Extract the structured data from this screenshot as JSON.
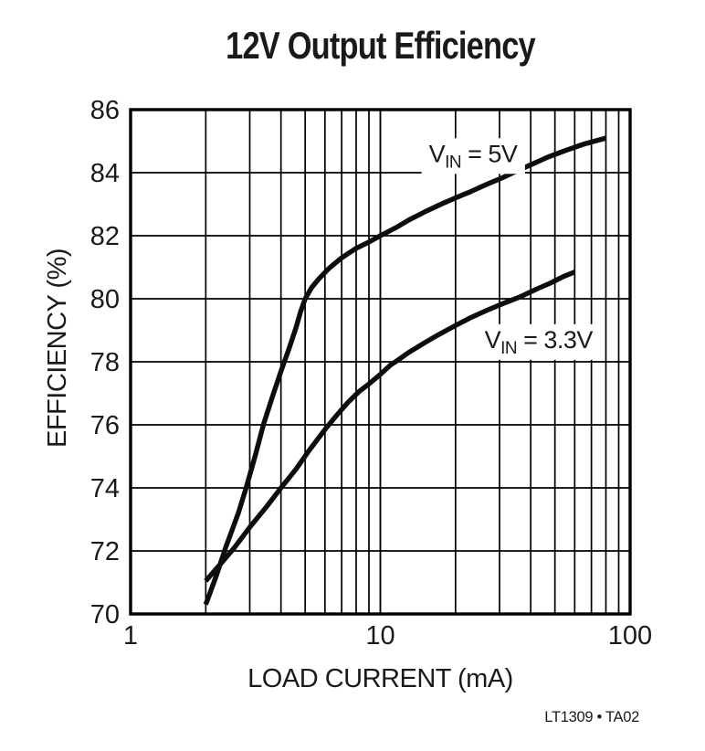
{
  "page": {
    "background": "#ffffff",
    "footnote": "LT1309 • TA02"
  },
  "chart_data": {
    "type": "line",
    "title": "12V Output Efficiency",
    "xlabel": "LOAD CURRENT (mA)",
    "ylabel": "EFFICIENCY (%)",
    "x_scale": "log",
    "xlim": [
      1,
      100
    ],
    "ylim": [
      70,
      86
    ],
    "grid": true,
    "grid_color": "#000000",
    "line_color": "#0d0d0d",
    "x_ticks": {
      "values": [
        1,
        10,
        100
      ],
      "labels": [
        "1",
        "10",
        "100"
      ]
    },
    "y_ticks": {
      "values": [
        70,
        72,
        74,
        76,
        78,
        80,
        82,
        84,
        86
      ],
      "labels": [
        "70",
        "72",
        "74",
        "76",
        "78",
        "80",
        "82",
        "84",
        "86"
      ]
    },
    "series": [
      {
        "name": "VIN = 5V",
        "label_parts": {
          "pre": "V",
          "sub": "IN",
          "post": " = 5V"
        },
        "label_anchor": {
          "x": 23.5,
          "y": 84.6
        },
        "points": [
          [
            2.0,
            70.3
          ],
          [
            2.2,
            71.2
          ],
          [
            2.4,
            72.1
          ],
          [
            2.7,
            73.2
          ],
          [
            2.9,
            74.0
          ],
          [
            3.15,
            75.0
          ],
          [
            3.4,
            76.0
          ],
          [
            3.7,
            76.9
          ],
          [
            4.0,
            77.7
          ],
          [
            4.3,
            78.4
          ],
          [
            4.6,
            79.1
          ],
          [
            4.8,
            79.6
          ],
          [
            5.0,
            80.0
          ],
          [
            5.3,
            80.35
          ],
          [
            5.7,
            80.65
          ],
          [
            6.2,
            80.95
          ],
          [
            7.0,
            81.3
          ],
          [
            8.0,
            81.6
          ],
          [
            9.0,
            81.8
          ],
          [
            10,
            82.0
          ],
          [
            11.5,
            82.25
          ],
          [
            13,
            82.5
          ],
          [
            15,
            82.75
          ],
          [
            17.5,
            83.0
          ],
          [
            20,
            83.2
          ],
          [
            23,
            83.4
          ],
          [
            27,
            83.65
          ],
          [
            31,
            83.85
          ],
          [
            34,
            84.0
          ],
          [
            40,
            84.25
          ],
          [
            47,
            84.5
          ],
          [
            55,
            84.7
          ],
          [
            65,
            84.9
          ],
          [
            80,
            85.1
          ]
        ]
      },
      {
        "name": "VIN = 3.3V",
        "label_parts": {
          "pre": "V",
          "sub": "IN",
          "post": " = 3.3V"
        },
        "label_anchor": {
          "x": 43,
          "y": 78.7
        },
        "points": [
          [
            2.0,
            71.05
          ],
          [
            2.3,
            71.6
          ],
          [
            2.6,
            72.1
          ],
          [
            3.0,
            72.75
          ],
          [
            3.5,
            73.4
          ],
          [
            4.0,
            74.0
          ],
          [
            4.6,
            74.6
          ],
          [
            5.2,
            75.2
          ],
          [
            6.0,
            75.85
          ],
          [
            6.6,
            76.25
          ],
          [
            7.4,
            76.7
          ],
          [
            8.2,
            77.05
          ],
          [
            9.0,
            77.3
          ],
          [
            10,
            77.6
          ],
          [
            11,
            77.9
          ],
          [
            11.5,
            78.0
          ],
          [
            13,
            78.3
          ],
          [
            15,
            78.6
          ],
          [
            17,
            78.85
          ],
          [
            20,
            79.15
          ],
          [
            23,
            79.4
          ],
          [
            27,
            79.65
          ],
          [
            31,
            79.85
          ],
          [
            36,
            80.05
          ],
          [
            42,
            80.3
          ],
          [
            48,
            80.5
          ],
          [
            54,
            80.7
          ],
          [
            60,
            80.85
          ]
        ]
      }
    ]
  }
}
